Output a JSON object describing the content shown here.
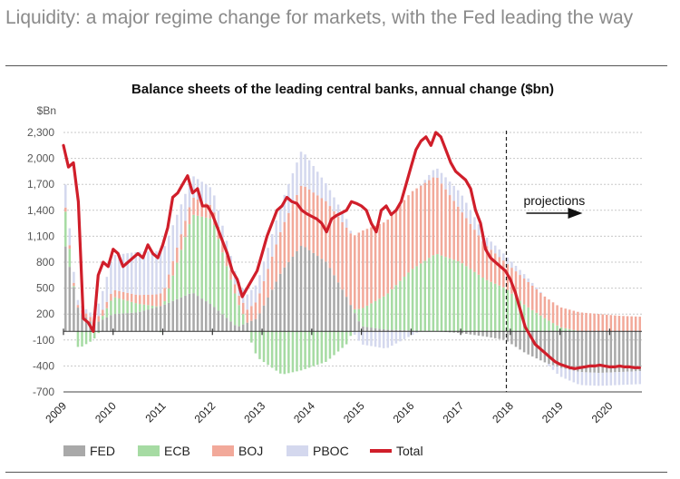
{
  "headline": "Liquidity: a major regime change for markets, with the Fed leading the way",
  "chart_data": {
    "type": "bar",
    "stacked": true,
    "title": "Balance sheets of the leading central banks, annual change ($bn)",
    "ylabel": "$Bn",
    "ylim": [
      -700,
      2300
    ],
    "yticks": [
      2300,
      2000,
      1700,
      1400,
      1100,
      800,
      500,
      200,
      -100,
      -400,
      -700
    ],
    "x_ticks": [
      "2009",
      "2010",
      "2011",
      "2012",
      "2013",
      "2014",
      "2015",
      "2016",
      "2017",
      "2018",
      "2019",
      "2020"
    ],
    "x_start": 2009.0,
    "x_end": 2020.65,
    "projection_start": 2017.92,
    "projection_label": "projections",
    "series_colors": {
      "FED": "#a9a9a9",
      "ECB": "#a6dba3",
      "BOJ": "#f2a99a",
      "PBOC": "#d4d8ee",
      "Total": "#d01e2a"
    },
    "series": [
      {
        "name": "FED",
        "x": [
          2009.0,
          2009.3,
          2009.6,
          2010.0,
          2010.5,
          2011.0,
          2011.6,
          2012.0,
          2012.5,
          2012.9,
          2013.4,
          2013.8,
          2014.3,
          2014.7,
          2015.0,
          2015.5,
          2016.0,
          2016.5,
          2017.0,
          2017.5,
          2017.9,
          2018.3,
          2018.7,
          2019.0,
          2019.4,
          2019.8,
          2020.2,
          2020.6
        ],
        "values": [
          1100,
          250,
          80,
          200,
          220,
          300,
          450,
          300,
          50,
          150,
          700,
          1000,
          800,
          400,
          60,
          20,
          10,
          0,
          -20,
          -60,
          -100,
          -250,
          -360,
          -420,
          -470,
          -480,
          -470,
          -460
        ]
      },
      {
        "name": "ECB",
        "x": [
          2009.0,
          2009.3,
          2009.6,
          2010.0,
          2010.5,
          2011.0,
          2011.6,
          2012.0,
          2012.5,
          2012.9,
          2013.4,
          2013.8,
          2014.3,
          2014.7,
          2015.0,
          2015.5,
          2016.0,
          2016.5,
          2017.0,
          2017.5,
          2017.9,
          2018.3,
          2018.7,
          2019.0,
          2019.4,
          2019.8,
          2020.2,
          2020.6
        ],
        "values": [
          500,
          -200,
          -100,
          200,
          100,
          -20,
          900,
          1000,
          300,
          -300,
          -500,
          -450,
          -350,
          -150,
          200,
          400,
          700,
          900,
          800,
          600,
          500,
          300,
          150,
          50,
          0,
          0,
          0,
          0
        ]
      },
      {
        "name": "BOJ",
        "x": [
          2009.0,
          2009.3,
          2009.6,
          2010.0,
          2010.5,
          2011.0,
          2011.6,
          2012.0,
          2012.5,
          2012.9,
          2013.4,
          2013.8,
          2014.3,
          2014.7,
          2015.0,
          2015.5,
          2016.0,
          2016.5,
          2017.0,
          2017.5,
          2017.9,
          2018.3,
          2018.7,
          2019.0,
          2019.4,
          2019.8,
          2020.2,
          2020.6
        ],
        "values": [
          50,
          30,
          60,
          80,
          100,
          150,
          200,
          150,
          100,
          200,
          500,
          700,
          700,
          800,
          900,
          850,
          900,
          900,
          600,
          400,
          300,
          300,
          250,
          230,
          220,
          200,
          180,
          170
        ]
      },
      {
        "name": "PBOC",
        "x": [
          2009.0,
          2009.3,
          2009.6,
          2010.0,
          2010.5,
          2011.0,
          2011.6,
          2012.0,
          2012.5,
          2012.9,
          2013.4,
          2013.8,
          2014.3,
          2014.7,
          2015.0,
          2015.5,
          2016.0,
          2016.5,
          2017.0,
          2017.5,
          2017.9,
          2018.3,
          2018.7,
          2019.0,
          2019.4,
          2019.8,
          2020.2,
          2020.6
        ],
        "values": [
          300,
          50,
          50,
          400,
          500,
          500,
          250,
          200,
          150,
          200,
          300,
          400,
          200,
          100,
          -150,
          -200,
          -50,
          100,
          200,
          100,
          80,
          50,
          0,
          -100,
          -150,
          -150,
          -150,
          -150
        ]
      },
      {
        "name": "Total",
        "x": [
          2009.0,
          2009.1,
          2009.2,
          2009.3,
          2009.4,
          2009.5,
          2009.6,
          2009.7,
          2009.8,
          2009.9,
          2010.0,
          2010.1,
          2010.2,
          2010.3,
          2010.4,
          2010.5,
          2010.6,
          2010.7,
          2010.8,
          2010.9,
          2011.0,
          2011.1,
          2011.2,
          2011.3,
          2011.4,
          2011.5,
          2011.6,
          2011.7,
          2011.8,
          2011.9,
          2012.0,
          2012.1,
          2012.2,
          2012.3,
          2012.4,
          2012.5,
          2012.6,
          2012.7,
          2012.8,
          2012.9,
          2013.0,
          2013.1,
          2013.2,
          2013.3,
          2013.4,
          2013.5,
          2013.6,
          2013.7,
          2013.8,
          2013.9,
          2014.0,
          2014.1,
          2014.2,
          2014.3,
          2014.4,
          2014.5,
          2014.6,
          2014.7,
          2014.8,
          2014.9,
          2015.0,
          2015.1,
          2015.2,
          2015.3,
          2015.4,
          2015.5,
          2015.6,
          2015.7,
          2015.8,
          2015.9,
          2016.0,
          2016.1,
          2016.2,
          2016.3,
          2016.4,
          2016.5,
          2016.6,
          2016.7,
          2016.8,
          2016.9,
          2017.0,
          2017.1,
          2017.2,
          2017.3,
          2017.4,
          2017.5,
          2017.6,
          2017.7,
          2017.8,
          2017.9,
          2018.0,
          2018.1,
          2018.2,
          2018.3,
          2018.4,
          2018.5,
          2018.6,
          2018.7,
          2018.8,
          2018.9,
          2019.0,
          2019.1,
          2019.2,
          2019.3,
          2019.4,
          2019.5,
          2019.6,
          2019.7,
          2019.8,
          2019.9,
          2020.0,
          2020.1,
          2020.2,
          2020.3,
          2020.4,
          2020.5,
          2020.6
        ],
        "values": [
          2150,
          1900,
          1950,
          1500,
          150,
          100,
          0,
          650,
          800,
          750,
          950,
          900,
          750,
          800,
          850,
          900,
          850,
          1000,
          900,
          850,
          1000,
          1200,
          1550,
          1600,
          1700,
          1800,
          1600,
          1650,
          1450,
          1450,
          1350,
          1200,
          1050,
          900,
          700,
          600,
          400,
          500,
          600,
          700,
          900,
          1100,
          1250,
          1400,
          1450,
          1550,
          1500,
          1480,
          1400,
          1360,
          1330,
          1300,
          1250,
          1150,
          1300,
          1340,
          1370,
          1400,
          1500,
          1480,
          1450,
          1400,
          1250,
          1150,
          1400,
          1450,
          1350,
          1400,
          1500,
          1700,
          1900,
          2100,
          2200,
          2250,
          2150,
          2300,
          2250,
          2100,
          1950,
          1850,
          1800,
          1750,
          1650,
          1400,
          1250,
          950,
          850,
          800,
          750,
          700,
          600,
          450,
          250,
          50,
          -50,
          -150,
          -200,
          -250,
          -300,
          -350,
          -380,
          -400,
          -420,
          -430,
          -420,
          -410,
          -400,
          -400,
          -390,
          -400,
          -410,
          -410,
          -400,
          -410,
          -410,
          -420,
          -420
        ]
      }
    ],
    "legend": [
      "FED",
      "ECB",
      "BOJ",
      "PBOC",
      "Total"
    ]
  }
}
